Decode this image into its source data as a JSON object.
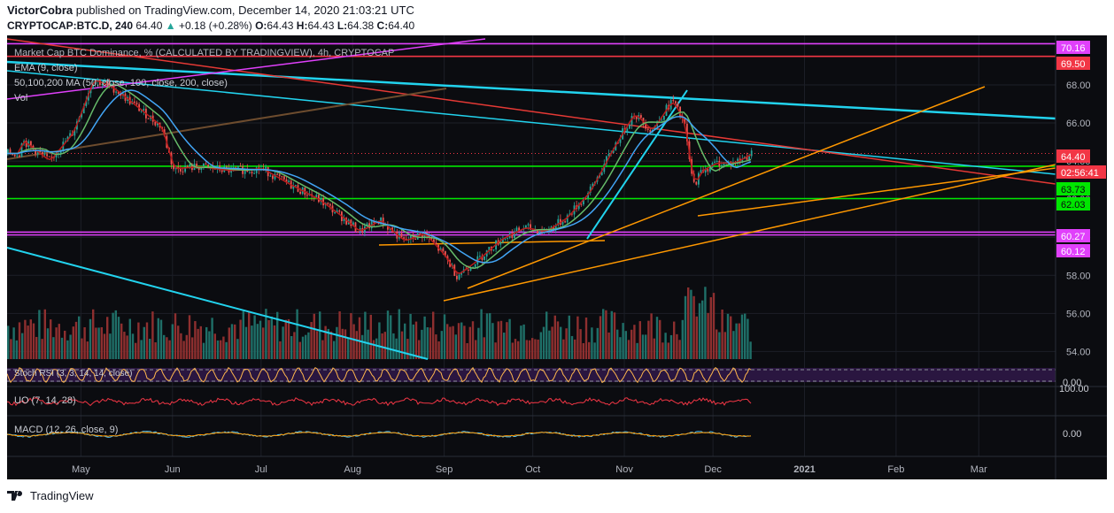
{
  "header": {
    "author": "VictorCobra",
    "published_text": "published on TradingView.com, December 14, 2020 21:03:21 UTC"
  },
  "ticker": {
    "symbol": "CRYPTOCAP:BTC.D, 240",
    "last": "64.40",
    "change": "+0.18 (+0.28%)",
    "o_label": "O:",
    "o": "64.43",
    "h_label": "H:",
    "h": "64.43",
    "l_label": "L:",
    "l": "64.38",
    "c_label": "C:",
    "c": "64.40"
  },
  "legend": {
    "line1": "Market Cap BTC Dominance, % (CALCULATED BY TRADINGVIEW), 4h, CRYPTOCAP",
    "line2": "EMA (9, close)",
    "line3": "50,100,200 MA (50, close, 100, close, 200, close)",
    "line4": "Vol",
    "rsi": "Stoch RSI (3, 3, 14, 14, close)",
    "uo": "UO (7, 14, 28)",
    "macd": "MACD (12, 26, close, 9)"
  },
  "price_labels": [
    {
      "text": "70.16",
      "bg": "#e040fb"
    },
    {
      "text": "69.50",
      "bg": "#f23645"
    },
    {
      "text": "64.40",
      "bg": "#f23645"
    },
    {
      "text": "02:56:41",
      "bg": "#f23645"
    },
    {
      "text": "63.73",
      "bg": "#00e600"
    },
    {
      "text": "62.03",
      "bg": "#00e600"
    },
    {
      "text": "60.27",
      "bg": "#e040fb"
    },
    {
      "text": "60.12",
      "bg": "#e040fb"
    }
  ],
  "indicator_labels": {
    "rsi": "0.00",
    "uo": "100.00",
    "macd": "0.00"
  },
  "footer": {
    "brand": "TradingView"
  },
  "chart_data": {
    "type": "line",
    "series_name": "Market Cap BTC Dominance, %",
    "y_ticks": [
      68.0,
      66.0,
      64.0,
      62.0,
      60.0,
      58.0,
      56.0,
      54.0
    ],
    "ylim": [
      53.6,
      70.6
    ],
    "x_ticks": [
      "May",
      "Jun",
      "Jul",
      "Aug",
      "Sep",
      "Oct",
      "Nov",
      "Dec",
      "2021",
      "Feb",
      "Mar"
    ],
    "x": [
      "2020-04-10",
      "2020-04-20",
      "2020-04-28",
      "2020-05-05",
      "2020-05-12",
      "2020-05-20",
      "2020-05-28",
      "2020-06-01",
      "2020-06-10",
      "2020-06-20",
      "2020-07-01",
      "2020-07-10",
      "2020-07-20",
      "2020-07-27",
      "2020-08-03",
      "2020-08-10",
      "2020-08-18",
      "2020-08-25",
      "2020-09-01",
      "2020-09-05",
      "2020-09-12",
      "2020-09-20",
      "2020-09-28",
      "2020-10-05",
      "2020-10-12",
      "2020-10-20",
      "2020-10-28",
      "2020-11-04",
      "2020-11-10",
      "2020-11-17",
      "2020-11-21",
      "2020-11-24",
      "2020-11-27",
      "2020-12-02",
      "2020-12-08",
      "2020-12-14"
    ],
    "values": [
      65.2,
      64.0,
      65.5,
      68.3,
      67.8,
      66.8,
      65.8,
      63.6,
      63.7,
      63.5,
      63.6,
      62.8,
      62.0,
      61.2,
      60.3,
      60.9,
      59.8,
      60.2,
      59.0,
      58.0,
      58.8,
      59.9,
      60.5,
      60.3,
      61.0,
      62.4,
      64.7,
      66.5,
      65.6,
      67.2,
      66.0,
      62.7,
      63.5,
      63.9,
      63.9,
      64.4
    ],
    "horizontal_levels": [
      {
        "value": 70.16,
        "color": "#e040fb"
      },
      {
        "value": 69.5,
        "color": "#f23645"
      },
      {
        "value": 63.73,
        "color": "#00e600"
      },
      {
        "value": 62.03,
        "color": "#00e600"
      },
      {
        "value": 60.27,
        "color": "#e040fb"
      },
      {
        "value": 60.12,
        "color": "#e040fb"
      }
    ],
    "last_value": 64.4,
    "grid": true
  }
}
